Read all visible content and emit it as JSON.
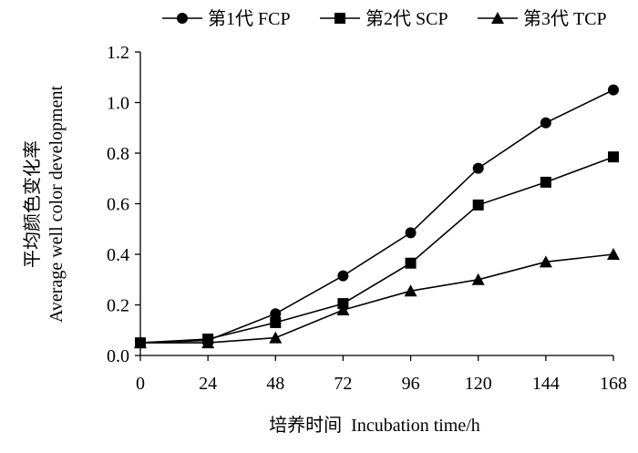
{
  "chart_data": {
    "type": "line",
    "title": "",
    "xlabel": "培养时间  Incubation time/h",
    "ylabel_cn": "平均颜色变化率",
    "ylabel_en": "Average well color development",
    "x": [
      0,
      24,
      48,
      72,
      96,
      120,
      144,
      168
    ],
    "x_tick_labels": [
      "0",
      "24",
      "48",
      "72",
      "96",
      "120",
      "144",
      "168"
    ],
    "y_tick_labels": [
      "0.0",
      "0.2",
      "0.4",
      "0.6",
      "0.8",
      "1.0",
      "1.2"
    ],
    "xlim": [
      0,
      168
    ],
    "ylim": [
      0,
      1.2
    ],
    "grid": false,
    "legend_position": "top",
    "series": [
      {
        "name": "第1代 FCP",
        "marker": "circle",
        "values": [
          0.05,
          0.06,
          0.165,
          0.315,
          0.485,
          0.74,
          0.92,
          1.05
        ]
      },
      {
        "name": "第2代 SCP",
        "marker": "square",
        "values": [
          0.05,
          0.065,
          0.13,
          0.205,
          0.365,
          0.595,
          0.685,
          0.785
        ]
      },
      {
        "name": "第3代 TCP",
        "marker": "triangle",
        "values": [
          0.05,
          0.05,
          0.07,
          0.18,
          0.255,
          0.3,
          0.37,
          0.4
        ]
      }
    ],
    "colors": {
      "line": "#000000",
      "marker": "#000000",
      "axis": "#000000"
    }
  }
}
